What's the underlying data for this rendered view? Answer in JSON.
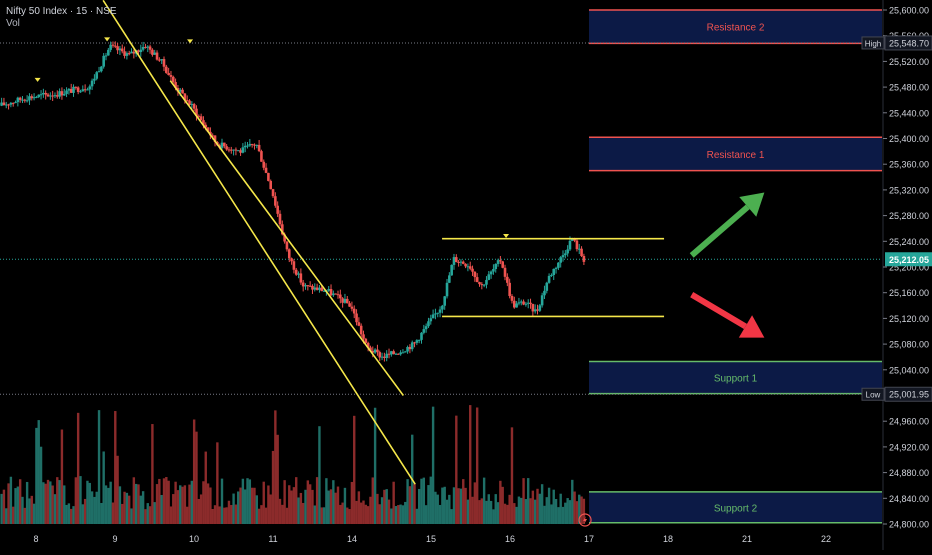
{
  "header": {
    "title": "Nifty 50 Index · 15 · NSE",
    "volume_label": "Vol"
  },
  "colors": {
    "background": "#000000",
    "up": "#26a69a",
    "down": "#ef5350",
    "vol_up": "#1f6f67",
    "vol_down": "#8c2b2b",
    "trendline": "#f5e74a",
    "resistance": "#ef5350",
    "support": "#66bb6a",
    "zone_fill": "#0c1a46",
    "arrow_up": "#4caf50",
    "arrow_down": "#f23645",
    "axis_text": "#d1d4dc",
    "price_tag": "#26a69a"
  },
  "chart_data": {
    "type": "candlestick",
    "title": "Nifty 50 Index · 15 · NSE",
    "timeframe": "15",
    "xlabel": "",
    "ylabel": "",
    "ylim": [
      24800,
      25600
    ],
    "grid": false,
    "y_ticks": [
      "25,600.00",
      "25,560.00",
      "25,520.00",
      "25,480.00",
      "25,440.00",
      "25,400.00",
      "25,360.00",
      "25,320.00",
      "25,280.00",
      "25,240.00",
      "25,200.00",
      "25,160.00",
      "25,120.00",
      "25,080.00",
      "25,040.00",
      "25,000.00",
      "24,960.00",
      "24,920.00",
      "24,880.00",
      "24,840.00",
      "24,800.00"
    ],
    "y_tick_values": [
      25600,
      25560,
      25520,
      25480,
      25440,
      25400,
      25360,
      25320,
      25280,
      25240,
      25200,
      25160,
      25120,
      25080,
      25040,
      25000,
      24960,
      24920,
      24880,
      24840,
      24800
    ],
    "x_ticks": [
      "8",
      "9",
      "10",
      "11",
      "14",
      "15",
      "16",
      "17",
      "18",
      "21",
      "22"
    ],
    "x_tick_values": [
      0,
      1,
      2,
      3,
      4,
      5,
      6,
      7,
      8,
      9,
      10
    ],
    "series_path": [
      [
        -0.45,
        25451
      ],
      [
        -0.1,
        25464
      ],
      [
        0.3,
        25470
      ],
      [
        0.7,
        25482
      ],
      [
        0.95,
        25543
      ],
      [
        1.2,
        25530
      ],
      [
        1.4,
        25545
      ],
      [
        1.6,
        25520
      ],
      [
        1.8,
        25478
      ],
      [
        2.0,
        25448
      ],
      [
        2.3,
        25392
      ],
      [
        2.6,
        25380
      ],
      [
        2.8,
        25393
      ],
      [
        3.0,
        25320
      ],
      [
        3.2,
        25220
      ],
      [
        3.4,
        25170
      ],
      [
        3.7,
        25163
      ],
      [
        4.0,
        25140
      ],
      [
        4.2,
        25075
      ],
      [
        4.4,
        25060
      ],
      [
        4.6,
        25068
      ],
      [
        4.8,
        25080
      ],
      [
        5.0,
        25115
      ],
      [
        5.15,
        25140
      ],
      [
        5.3,
        25213
      ],
      [
        5.5,
        25203
      ],
      [
        5.65,
        25170
      ],
      [
        5.9,
        25212
      ],
      [
        6.05,
        25140
      ],
      [
        6.2,
        25145
      ],
      [
        6.35,
        25130
      ],
      [
        6.5,
        25183
      ],
      [
        6.7,
        25222
      ],
      [
        6.8,
        25245
      ],
      [
        6.95,
        25212
      ]
    ],
    "last_price": 25212.05,
    "last_price_label": "25,212.05",
    "high": {
      "label": "High",
      "value": 25548.7,
      "value_label": "25,548.70"
    },
    "low": {
      "label": "Low",
      "value": 25001.95,
      "value_label": "25,001.95"
    },
    "zones": [
      {
        "label": "Resistance 2",
        "kind": "resistance",
        "top": 25600,
        "bottom": 25548
      },
      {
        "label": "Resistance 1",
        "kind": "resistance",
        "top": 25402,
        "bottom": 25350
      },
      {
        "label": "Support 1",
        "kind": "support",
        "top": 25053,
        "bottom": 25003
      },
      {
        "label": "Support 2",
        "kind": "support",
        "top": 24850,
        "bottom": 24802
      }
    ],
    "trendlines": [
      {
        "name": "channel-upper",
        "from": [
          0.85,
          25615
        ],
        "to": [
          4.8,
          24862
        ]
      },
      {
        "name": "channel-lower",
        "from": [
          1.7,
          25490
        ],
        "to": [
          4.65,
          25000
        ]
      },
      {
        "name": "range-top",
        "from": [
          5.14,
          25244
        ],
        "to": [
          7.95,
          25244
        ]
      },
      {
        "name": "range-bottom",
        "from": [
          5.14,
          25123
        ],
        "to": [
          7.95,
          25123
        ]
      }
    ],
    "arrows": [
      {
        "name": "bullish-arrow",
        "direction": "up",
        "from": [
          8.3,
          25218
        ],
        "to": [
          9.22,
          25316
        ]
      },
      {
        "name": "bearish-arrow",
        "direction": "down",
        "from": [
          8.3,
          25157
        ],
        "to": [
          9.22,
          25090
        ]
      }
    ]
  }
}
